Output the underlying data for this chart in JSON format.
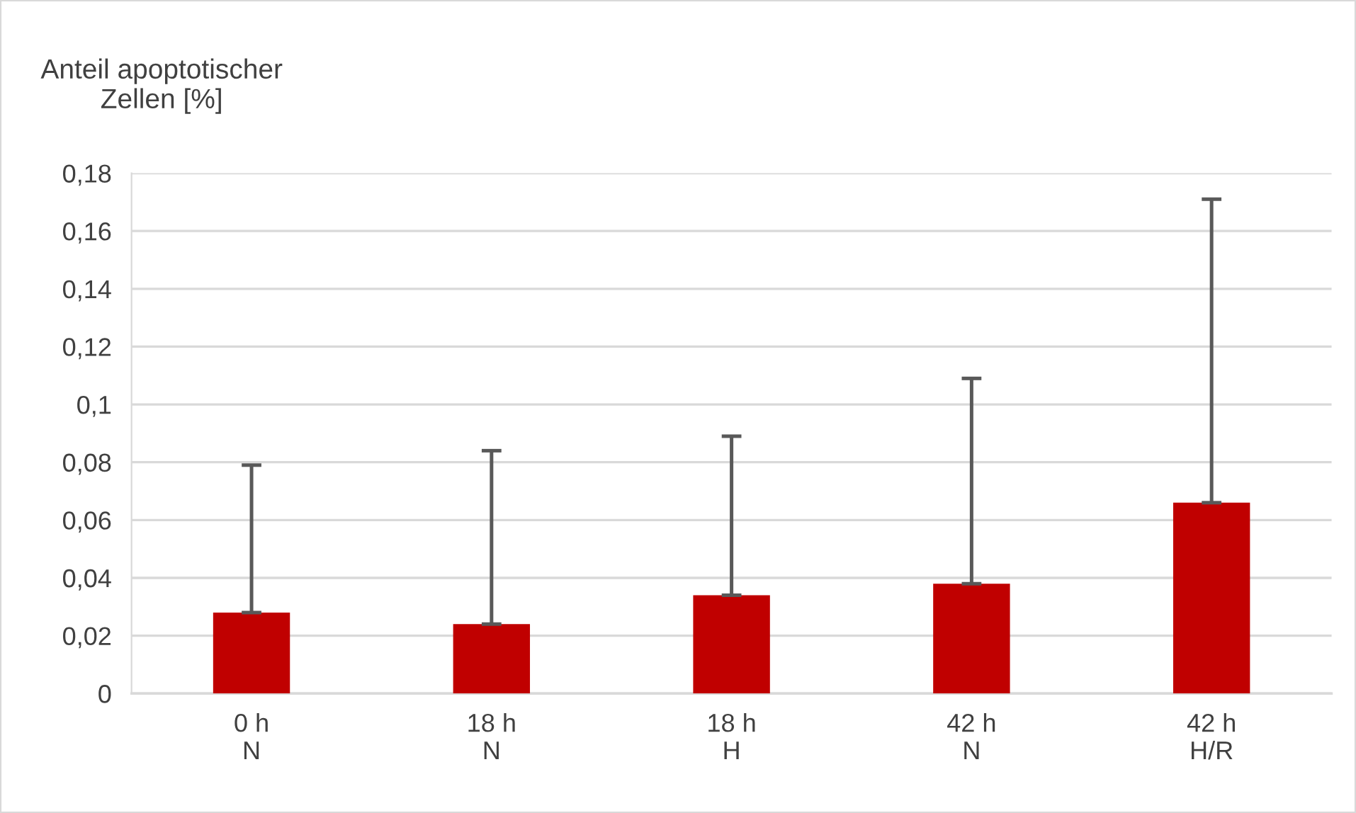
{
  "chart_data": {
    "type": "bar",
    "ylabel": "Anteil apoptotischer\nZellen [%]",
    "categories": [
      "0 h\nN",
      "18 h\nN",
      "18 h\nH",
      "42 h\nN",
      "42 h\nH/R"
    ],
    "values": [
      0.028,
      0.024,
      0.034,
      0.038,
      0.066
    ],
    "errors": [
      [
        0.028,
        0.079
      ],
      [
        0.024,
        0.084
      ],
      [
        0.034,
        0.089
      ],
      [
        0.038,
        0.109
      ],
      [
        0.066,
        0.171
      ]
    ],
    "color": "#c00000",
    "ylim": [
      0,
      0.18
    ],
    "yticks": [
      0,
      {
        "value": 0.02,
        "label": "0,02"
      },
      {
        "value": 0.04,
        "label": "0,04"
      },
      {
        "value": 0.06,
        "label": "0,06"
      },
      {
        "value": 0.08,
        "label": "0,08"
      },
      {
        "value": 0.1,
        "label": "0,1"
      },
      {
        "value": 0.12,
        "label": "0,12"
      },
      {
        "value": 0.14,
        "label": "0,14"
      },
      {
        "value": 0.16,
        "label": "0,16"
      },
      {
        "value": 0.18,
        "label": "0,18"
      }
    ],
    "grid": "y"
  }
}
